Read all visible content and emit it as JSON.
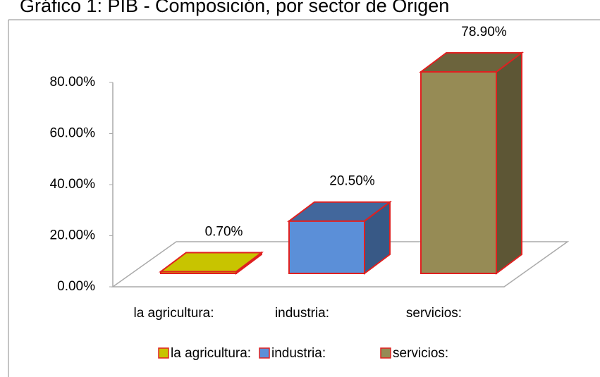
{
  "chart_data": {
    "type": "bar3d",
    "title": "Gráfico 1: PIB - Composición, por sector de Origen",
    "categories": [
      "la agricultura:",
      "industria:",
      "servicios:"
    ],
    "values": [
      0.7,
      20.5,
      78.9
    ],
    "value_labels": [
      "0.70%",
      "20.50%",
      "78.90%"
    ],
    "colors": [
      "#c8c400",
      "#5b8fd8",
      "#968b55"
    ],
    "edge_color": "#e02020",
    "ylim": [
      0,
      80
    ],
    "yticks": [
      {
        "value": 0,
        "label": "0.00%"
      },
      {
        "value": 20,
        "label": "20.00%"
      },
      {
        "value": 40,
        "label": "40.00%"
      },
      {
        "value": 60,
        "label": "60.00%"
      },
      {
        "value": 80,
        "label": "80.00%"
      }
    ],
    "legend": "bottom"
  }
}
